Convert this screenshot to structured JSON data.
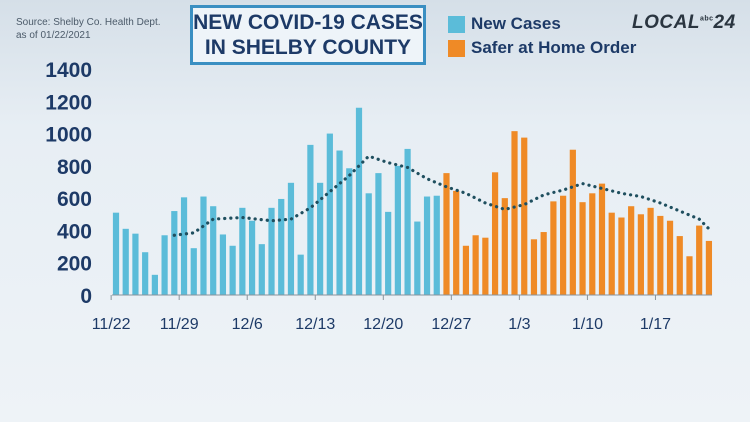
{
  "header": {
    "source_line1": "Source: Shelby Co. Health Dept.",
    "source_line2": "as of 01/22/2021",
    "title_line1": "NEW COVID-19 CASES",
    "title_line2": "IN SHELBY COUNTY",
    "logo_text": "LOCAL",
    "logo_small": "abc",
    "logo_number": "24"
  },
  "colors": {
    "new_cases": "#5bbcd9",
    "safer_at_home": "#ef8a26",
    "trend": "#1f4f5f",
    "axis": "#8a949c"
  },
  "chart_data": {
    "type": "bar",
    "title": "NEW COVID-19 CASES IN SHELBY COUNTY",
    "ylim": [
      0,
      1400
    ],
    "yticks": [
      0,
      200,
      400,
      600,
      800,
      1000,
      1200,
      1400
    ],
    "x_tick_labels": [
      {
        "label": "11/22",
        "index": 0
      },
      {
        "label": "11/29",
        "index": 7
      },
      {
        "label": "12/6",
        "index": 14
      },
      {
        "label": "12/13",
        "index": 21
      },
      {
        "label": "12/20",
        "index": 28
      },
      {
        "label": "12/27",
        "index": 35
      },
      {
        "label": "1/3",
        "index": 42
      },
      {
        "label": "1/10",
        "index": 49
      },
      {
        "label": "1/17",
        "index": 56
      }
    ],
    "series": [
      {
        "name": "New Cases",
        "start_index": 0,
        "values": [
          510,
          410,
          380,
          265,
          125,
          370,
          520,
          605,
          290,
          610,
          550,
          375,
          305,
          540,
          460,
          315,
          540,
          595,
          695,
          250,
          930,
          695,
          1000,
          895,
          785,
          1160,
          630,
          755,
          515,
          800,
          905,
          455,
          610,
          615
        ]
      },
      {
        "name": "Safer at Home Order",
        "start_index": 34,
        "values": [
          755,
          645,
          305,
          370,
          355,
          760,
          600,
          1015,
          975,
          345,
          390,
          580,
          615,
          900,
          575,
          630,
          690,
          510,
          480,
          550,
          500,
          540,
          490,
          460,
          365,
          240,
          430,
          335
        ]
      }
    ],
    "trend": {
      "style": "dotted",
      "points": [
        [
          6,
          370
        ],
        [
          8,
          385
        ],
        [
          10,
          470
        ],
        [
          13,
          480
        ],
        [
          16,
          460
        ],
        [
          18,
          470
        ],
        [
          20,
          540
        ],
        [
          22,
          640
        ],
        [
          24,
          740
        ],
        [
          26,
          860
        ],
        [
          28,
          820
        ],
        [
          30,
          790
        ],
        [
          32,
          720
        ],
        [
          34,
          670
        ],
        [
          36,
          630
        ],
        [
          38,
          570
        ],
        [
          40,
          530
        ],
        [
          42,
          560
        ],
        [
          44,
          620
        ],
        [
          46,
          650
        ],
        [
          48,
          690
        ],
        [
          50,
          660
        ],
        [
          52,
          630
        ],
        [
          54,
          610
        ],
        [
          56,
          570
        ],
        [
          58,
          520
        ],
        [
          60,
          470
        ],
        [
          61,
          410
        ]
      ]
    }
  }
}
